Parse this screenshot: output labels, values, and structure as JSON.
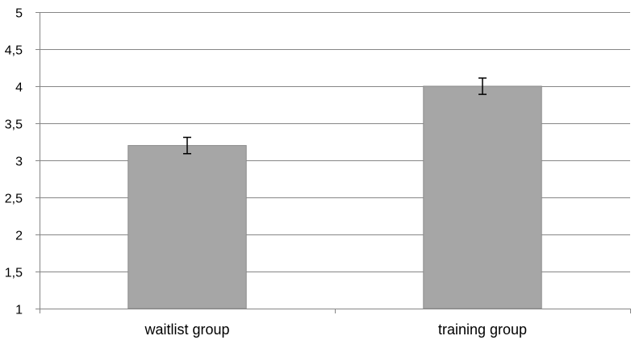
{
  "chart_data": {
    "type": "bar",
    "categories": [
      "waitlist group",
      "training group"
    ],
    "values": [
      3.2,
      4.0
    ],
    "error_bars": [
      0.11,
      0.11
    ],
    "ylim": [
      1,
      5
    ],
    "yticks": [
      "1",
      "1,5",
      "2",
      "2,5",
      "3",
      "3,5",
      "4",
      "4,5",
      "5"
    ],
    "title": "",
    "xlabel": "",
    "ylabel": "",
    "grid": true,
    "legend": "none",
    "colors": {
      "bar": "#a6a6a6",
      "bar_edge": "#8a8a8a",
      "grid": "#868686",
      "axis": "#868686"
    }
  }
}
